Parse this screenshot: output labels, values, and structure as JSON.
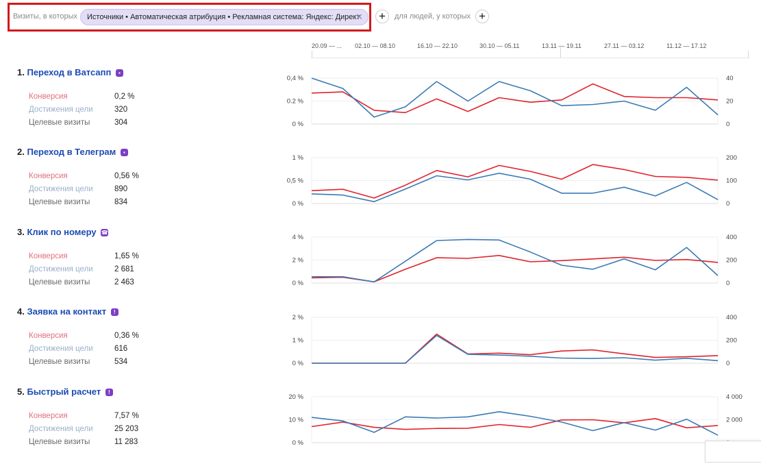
{
  "filter": {
    "visits_label": "Визиты, в которых",
    "chip_text": "Источники • Автоматическая атрибуция • Рекламная система: Яндекс: Директ",
    "chip_close_icon": "close-icon",
    "add_icon": "plus-icon",
    "people_label": "для людей, у которых",
    "highlight_color": "#d2181c"
  },
  "timeline": {
    "labels": [
      "20.09 — ...",
      "02.10 — 08.10",
      "16.10 — 22.10",
      "30.10 — 05.11",
      "13.11 — 19.11",
      "27.11 — 03.12",
      "11.12 — 17.12"
    ]
  },
  "colors": {
    "conversion": "#e0232c",
    "reach": "#3a7ab5",
    "title": "#1c4bb3"
  },
  "goals": [
    {
      "index": "1.",
      "title": "Переход в Ватсапп",
      "icon": "chat-icon",
      "conversion_label": "Конверсия",
      "conversion": "0,2 %",
      "reach_label": "Достижения цели",
      "reach": "320",
      "visits_label": "Целевые визиты",
      "visits": "304",
      "left_ticks": [
        "0,4 %",
        "0.2 %",
        "0 %"
      ],
      "right_ticks": [
        "40",
        "20",
        "0"
      ]
    },
    {
      "index": "2.",
      "title": "Переход в Телеграм",
      "icon": "chat-icon",
      "conversion_label": "Конверсия",
      "conversion": "0,56 %",
      "reach_label": "Достижения цели",
      "reach": "890",
      "visits_label": "Целевые визиты",
      "visits": "834",
      "left_ticks": [
        "1 %",
        "0,5 %",
        "0 %"
      ],
      "right_ticks": [
        "200",
        "100",
        "0"
      ]
    },
    {
      "index": "3.",
      "title": "Клик по номеру",
      "icon": "phone-icon",
      "conversion_label": "Конверсия",
      "conversion": "1,65 %",
      "reach_label": "Достижения цели",
      "reach": "2 681",
      "visits_label": "Целевые визиты",
      "visits": "2 463",
      "left_ticks": [
        "4 %",
        "2 %",
        "0 %"
      ],
      "right_ticks": [
        "400",
        "200",
        "0"
      ]
    },
    {
      "index": "4.",
      "title": "Заявка на контакт",
      "icon": "form-icon",
      "conversion_label": "Конверсия",
      "conversion": "0,36 %",
      "reach_label": "Достижения цели",
      "reach": "616",
      "visits_label": "Целевые визиты",
      "visits": "534",
      "left_ticks": [
        "2 %",
        "1 %",
        "0 %"
      ],
      "right_ticks": [
        "400",
        "200",
        "0"
      ]
    },
    {
      "index": "5.",
      "title": "Быстрый расчет",
      "icon": "form-icon",
      "conversion_label": "Конверсия",
      "conversion": "7,57 %",
      "reach_label": "Достижения цели",
      "reach": "25 203",
      "visits_label": "Целевые визиты",
      "visits": "11 283",
      "left_ticks": [
        "20 %",
        "10 %",
        "0 %"
      ],
      "right_ticks": [
        "4 000",
        "2 000",
        "0"
      ]
    }
  ],
  "chart_data": [
    {
      "type": "line",
      "left_ylim": [
        0,
        0.4
      ],
      "right_ylim": [
        0,
        40
      ],
      "series": [
        {
          "axis": "left",
          "color": "#e0232c",
          "values": [
            0.27,
            0.28,
            0.12,
            0.1,
            0.22,
            0.11,
            0.23,
            0.19,
            0.21,
            0.35,
            0.24,
            0.23,
            0.23,
            0.21
          ]
        },
        {
          "axis": "right",
          "color": "#3a7ab5",
          "values": [
            40,
            31,
            6,
            15,
            37,
            20,
            37,
            29,
            16,
            17,
            20,
            12,
            32,
            8
          ]
        }
      ]
    },
    {
      "type": "line",
      "left_ylim": [
        0,
        1
      ],
      "right_ylim": [
        0,
        200
      ],
      "series": [
        {
          "axis": "left",
          "color": "#e0232c",
          "values": [
            0.28,
            0.31,
            0.12,
            0.4,
            0.72,
            0.58,
            0.83,
            0.7,
            0.53,
            0.85,
            0.74,
            0.59,
            0.57,
            0.51
          ]
        },
        {
          "axis": "right",
          "color": "#3a7ab5",
          "values": [
            42,
            37,
            8,
            63,
            121,
            103,
            132,
            106,
            45,
            45,
            71,
            33,
            92,
            17
          ]
        }
      ]
    },
    {
      "type": "line",
      "left_ylim": [
        0,
        4
      ],
      "right_ylim": [
        0,
        400
      ],
      "series": [
        {
          "axis": "left",
          "color": "#e0232c",
          "values": [
            0.45,
            0.5,
            0.1,
            1.2,
            2.2,
            2.15,
            2.4,
            1.85,
            1.95,
            2.1,
            2.25,
            1.97,
            2.05,
            1.8
          ]
        },
        {
          "axis": "right",
          "color": "#3a7ab5",
          "values": [
            55,
            55,
            10,
            190,
            370,
            380,
            375,
            270,
            155,
            120,
            210,
            115,
            310,
            65
          ]
        }
      ]
    },
    {
      "type": "line",
      "left_ylim": [
        0,
        2
      ],
      "right_ylim": [
        0,
        400
      ],
      "series": [
        {
          "axis": "left",
          "color": "#e0232c",
          "values": [
            0,
            0,
            0,
            0,
            1.27,
            0.4,
            0.44,
            0.37,
            0.53,
            0.58,
            0.41,
            0.25,
            0.28,
            0.33
          ]
        },
        {
          "axis": "right",
          "color": "#3a7ab5",
          "values": [
            0,
            0,
            0,
            0,
            242,
            77,
            71,
            61,
            45,
            41,
            48,
            26,
            43,
            22
          ]
        }
      ]
    },
    {
      "type": "line",
      "left_ylim": [
        0,
        20
      ],
      "right_ylim": [
        0,
        4000
      ],
      "series": [
        {
          "axis": "left",
          "color": "#e0232c",
          "values": [
            7.0,
            9.0,
            6.7,
            5.8,
            6.2,
            6.3,
            7.9,
            6.7,
            9.9,
            10.0,
            8.7,
            10.5,
            6.5,
            7.5
          ]
        },
        {
          "axis": "right",
          "color": "#3a7ab5",
          "values": [
            2200,
            1900,
            900,
            2250,
            2150,
            2250,
            2700,
            2300,
            1800,
            1050,
            1750,
            1100,
            2050,
            650
          ]
        }
      ]
    }
  ]
}
